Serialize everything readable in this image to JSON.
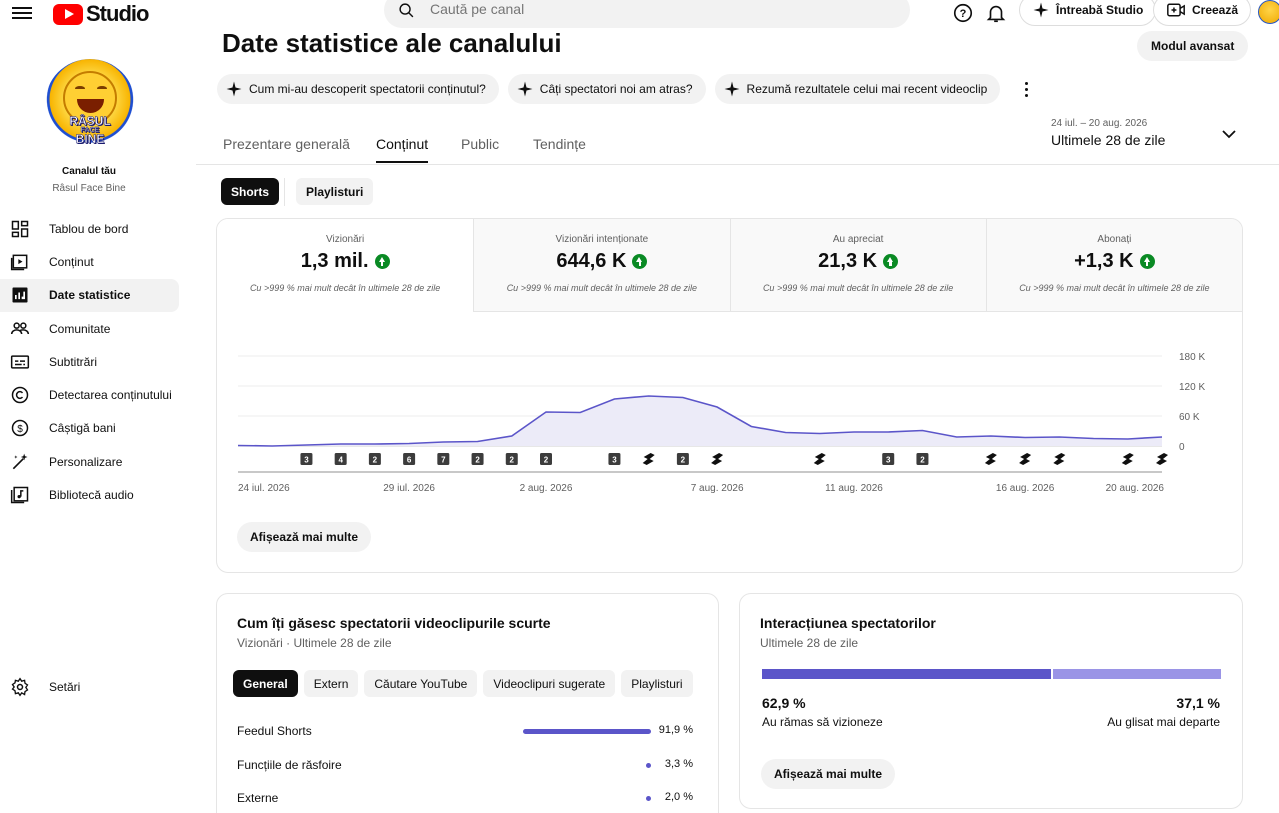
{
  "header": {
    "search_placeholder": "Caută pe canal",
    "studio_label": "Studio",
    "ask_studio": "Întreabă Studio",
    "create": "Creează"
  },
  "sidebar": {
    "channel_caption": "Canalul tău",
    "channel_name": "Râsul Face Bine",
    "avatar_text_top": "RÂSUL",
    "avatar_text_mid": "FACE",
    "avatar_text_bottom": "BINE",
    "items": [
      {
        "label": "Tablou de bord",
        "icon": "dashboard-icon"
      },
      {
        "label": "Conținut",
        "icon": "content-icon"
      },
      {
        "label": "Date statistice",
        "icon": "analytics-icon",
        "active": true
      },
      {
        "label": "Comunitate",
        "icon": "community-icon"
      },
      {
        "label": "Subtitrări",
        "icon": "subtitles-icon"
      },
      {
        "label": "Detectarea conținutului",
        "icon": "copyright-icon"
      },
      {
        "label": "Câștigă bani",
        "icon": "monetization-icon"
      },
      {
        "label": "Personalizare",
        "icon": "magic-wand-icon"
      },
      {
        "label": "Bibliotecă audio",
        "icon": "audio-library-icon"
      }
    ],
    "settings": "Setări"
  },
  "main": {
    "title": "Date statistice ale canalului",
    "advanced_mode": "Modul avansat",
    "suggestions": [
      "Cum mi-au descoperit spectatorii conținutul?",
      "Câți spectatori noi am atras?",
      "Rezumă rezultatele celui mai recent videoclip"
    ],
    "tabs": [
      "Prezentare generală",
      "Conținut",
      "Public",
      "Tendințe"
    ],
    "active_tab": "Conținut",
    "date_range_sub": "24 iul. – 20 aug. 2026",
    "date_range_main": "Ultimele 28 de zile",
    "segments": [
      "Shorts",
      "Playlisturi"
    ]
  },
  "metrics": [
    {
      "label": "Vizionări",
      "value": "1,3 mil.",
      "sub": "Cu >999 % mai mult decât în ultimele 28 de zile"
    },
    {
      "label": "Vizionări intenționate",
      "value": "644,6 K",
      "sub": "Cu >999 % mai mult decât în ultimele 28 de zile"
    },
    {
      "label": "Au apreciat",
      "value": "21,3 K",
      "sub": "Cu >999 % mai mult decât în ultimele 28 de zile"
    },
    {
      "label": "Abonați",
      "value": "+1,3 K",
      "sub": "Cu >999 % mai mult decât în ultimele 28 de zile"
    }
  ],
  "chart_data": {
    "type": "area",
    "series": [
      {
        "values": [
          1,
          0,
          2,
          4,
          4,
          5,
          8,
          9,
          20,
          68,
          67,
          94,
          100,
          97,
          78,
          39,
          27,
          25,
          28,
          28,
          31,
          18,
          20,
          17,
          18,
          15,
          14,
          18
        ]
      }
    ],
    "y_unit": "K",
    "ylim": [
      0,
      180
    ],
    "y_ticks": [
      "180 K",
      "120 K",
      "60 K",
      "0"
    ],
    "y_tick_values": [
      180,
      120,
      60,
      0
    ],
    "x_tick_labels": [
      "24 iul. 2026",
      "29 iul. 2026",
      "2 aug. 2026",
      "7 aug. 2026",
      "11 aug. 2026",
      "16 aug. 2026",
      "20 aug. 2026"
    ],
    "x_tick_index": [
      0,
      5,
      9,
      14,
      18,
      23,
      27
    ],
    "markers": [
      {
        "day": 2,
        "text": "3"
      },
      {
        "day": 3,
        "text": "4"
      },
      {
        "day": 4,
        "text": "2"
      },
      {
        "day": 5,
        "text": "6"
      },
      {
        "day": 6,
        "text": "7"
      },
      {
        "day": 7,
        "text": "2"
      },
      {
        "day": 8,
        "text": "2"
      },
      {
        "day": 9,
        "text": "2"
      },
      {
        "day": 11,
        "text": "3"
      },
      {
        "day": 12,
        "text": "short"
      },
      {
        "day": 13,
        "text": "2"
      },
      {
        "day": 14,
        "text": "short"
      },
      {
        "day": 17,
        "text": "short"
      },
      {
        "day": 19,
        "text": "3"
      },
      {
        "day": 20,
        "text": "2"
      },
      {
        "day": 22,
        "text": "short"
      },
      {
        "day": 23,
        "text": "short"
      },
      {
        "day": 24,
        "text": "short"
      },
      {
        "day": 26,
        "text": "short"
      },
      {
        "day": 27,
        "text": "short"
      }
    ],
    "colors": {
      "line": "#5b55c9",
      "fill": "#ecebf8"
    }
  },
  "show_more": "Afișează mai multe",
  "sources": {
    "title": "Cum îți găsesc spectatorii videoclipurile scurte",
    "subtitle": "Vizionări · Ultimele 28 de zile",
    "tabs": [
      "General",
      "Extern",
      "Căutare YouTube",
      "Videoclipuri sugerate",
      "Playlisturi"
    ],
    "rows": [
      {
        "label": "Feedul Shorts",
        "value": "91,9 %",
        "pct": 91.9
      },
      {
        "label": "Funcțiile de răsfoire",
        "value": "3,3 %",
        "pct": 3.3
      },
      {
        "label": "Externe",
        "value": "2,0 %",
        "pct": 2.0
      }
    ]
  },
  "interaction": {
    "title": "Interacțiunea spectatorilor",
    "subtitle": "Ultimele 28 de zile",
    "stayed_pct": "62,9 %",
    "stayed_label": "Au rămas să vizioneze",
    "swiped_pct": "37,1 %",
    "swiped_label": "Au glisat mai departe",
    "stayed_value": 62.9,
    "colors": {
      "stayed": "#5b55c9",
      "swiped": "#9a94e6"
    }
  }
}
